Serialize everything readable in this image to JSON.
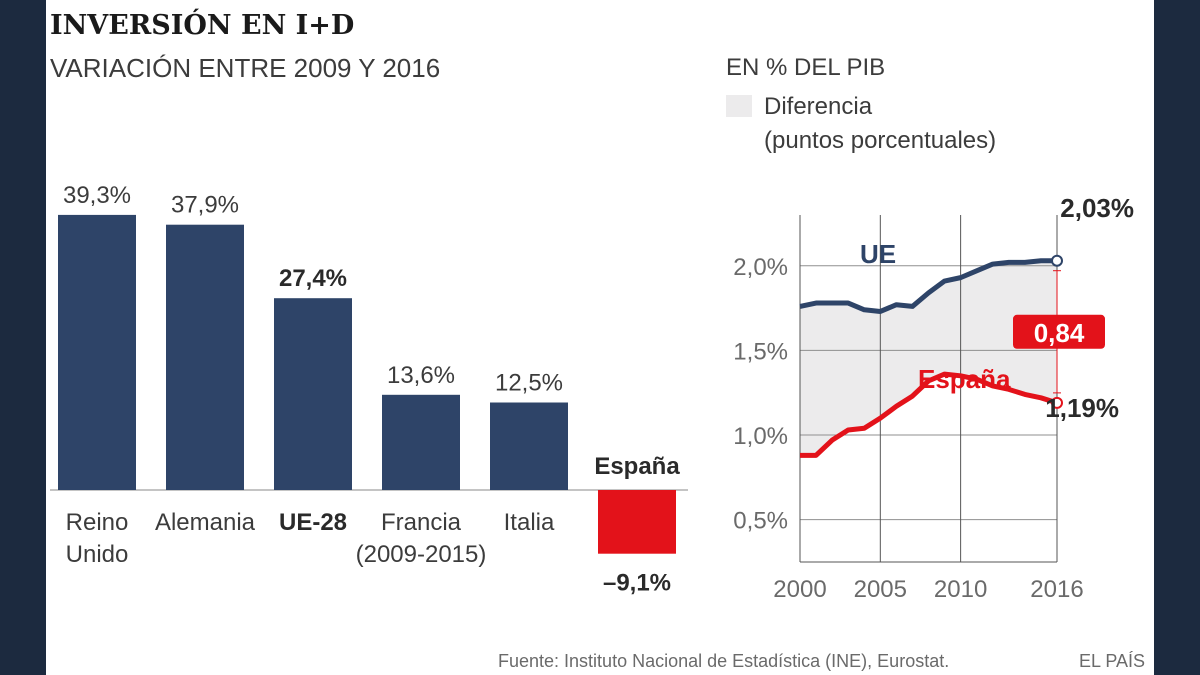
{
  "header": {
    "title": "INVERSIÓN EN I+D",
    "subtitle": "VARIACIÓN ENTRE 2009 Y 2016"
  },
  "colors": {
    "bar": "#2e4468",
    "highlight": "#e3121a",
    "line_ue": "#2e4468",
    "line_es": "#e3121a",
    "area": "#ecebec",
    "text": "#3c3c3c",
    "frame": "#1c2a3f"
  },
  "chart_data": [
    {
      "type": "bar",
      "title": "INVERSIÓN EN I+D",
      "subtitle": "VARIACIÓN ENTRE 2009 Y 2016",
      "unit": "%",
      "categories": [
        {
          "label1": "Reino",
          "label2": "Unido",
          "value": 39.3,
          "value_label": "39,3%",
          "highlight": false,
          "bold": false
        },
        {
          "label1": "Alemania",
          "label2": "",
          "value": 37.9,
          "value_label": "37,9%",
          "highlight": false,
          "bold": false
        },
        {
          "label1": "UE-28",
          "label2": "",
          "value": 27.4,
          "value_label": "27,4%",
          "highlight": false,
          "bold": true
        },
        {
          "label1": "Francia",
          "label2": "(2009-2015)",
          "value": 13.6,
          "value_label": "13,6%",
          "highlight": false,
          "bold": false
        },
        {
          "label1": "Italia",
          "label2": "",
          "value": 12.5,
          "value_label": "12,5%",
          "highlight": false,
          "bold": false
        },
        {
          "label1": "España",
          "label2": "",
          "value": -9.1,
          "value_label": "–9,1%",
          "highlight": true,
          "bold": true
        }
      ]
    },
    {
      "type": "line",
      "title": "EN % DEL PIB",
      "legend": {
        "line1": "Diferencia",
        "line2": "(puntos porcentuales)"
      },
      "x_ticks": [
        2000,
        2005,
        2010,
        2016
      ],
      "y_ticks": [
        {
          "v": 2.0,
          "label": "2,0%"
        },
        {
          "v": 1.5,
          "label": "1,5%"
        },
        {
          "v": 1.0,
          "label": "1,0%"
        },
        {
          "v": 0.5,
          "label": "0,5%"
        }
      ],
      "xlim": [
        2000,
        2016
      ],
      "ylim": [
        0.25,
        2.3
      ],
      "x": [
        2000,
        2001,
        2002,
        2003,
        2004,
        2005,
        2006,
        2007,
        2008,
        2009,
        2010,
        2011,
        2012,
        2013,
        2014,
        2015,
        2016
      ],
      "series": [
        {
          "name": "UE",
          "label": "UE",
          "values": [
            1.76,
            1.78,
            1.78,
            1.78,
            1.74,
            1.73,
            1.77,
            1.76,
            1.84,
            1.91,
            1.93,
            1.97,
            2.01,
            2.02,
            2.02,
            2.03,
            2.03
          ]
        },
        {
          "name": "España",
          "label": "España",
          "values": [
            0.88,
            0.88,
            0.97,
            1.03,
            1.04,
            1.1,
            1.17,
            1.23,
            1.32,
            1.36,
            1.35,
            1.33,
            1.29,
            1.27,
            1.24,
            1.22,
            1.19
          ]
        }
      ],
      "end_labels": {
        "ue": "2,03%",
        "es": "1,19%"
      },
      "difference_label": "0,84"
    }
  ],
  "footer": {
    "source": "Fuente: Instituto Nacional de Estadística (INE), Eurostat.",
    "brand": "EL PAÍS"
  }
}
